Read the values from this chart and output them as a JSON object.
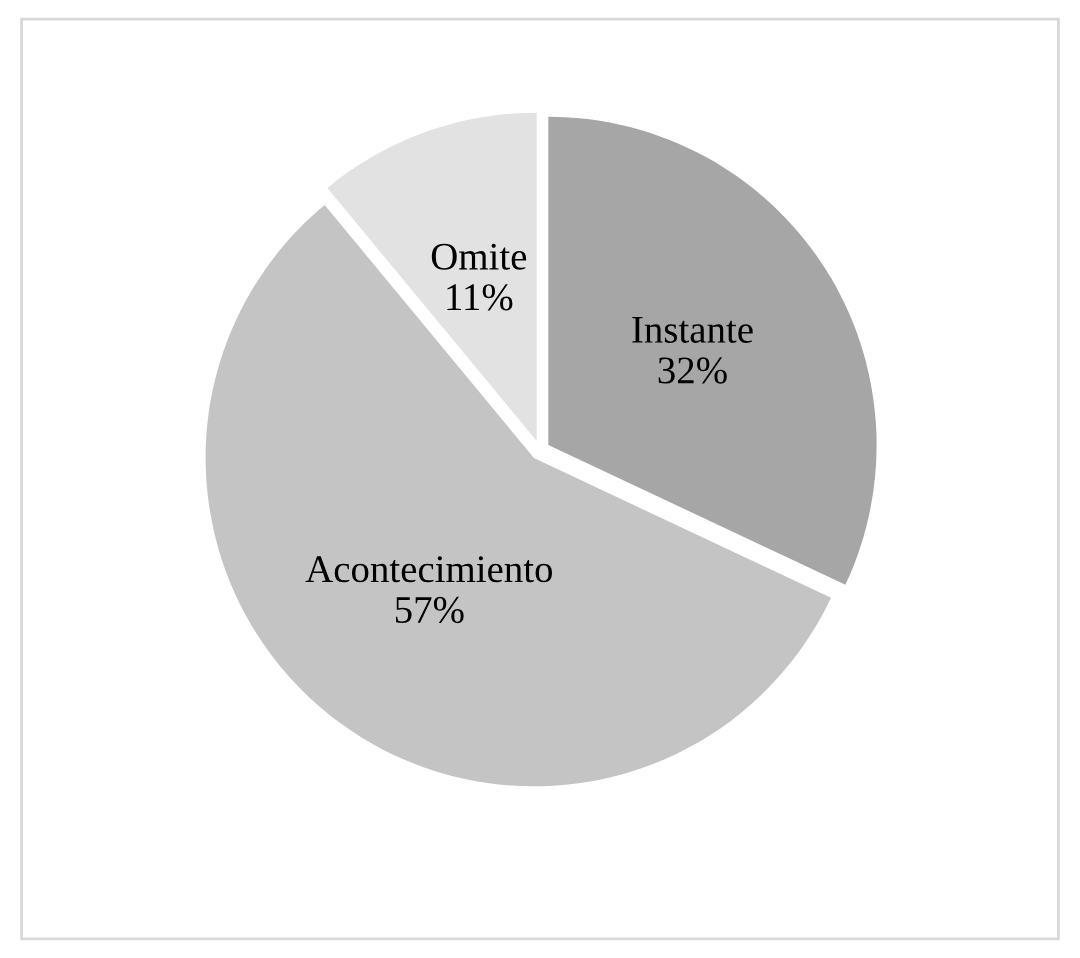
{
  "chart_data": {
    "type": "pie",
    "categories": [
      "Instante",
      "Acontecimiento",
      "Omite"
    ],
    "values": [
      32,
      57,
      11
    ],
    "value_labels": [
      "32%",
      "57%",
      "11%"
    ],
    "colors": [
      "#a6a6a6",
      "#c4c4c4",
      "#e2e2e2"
    ],
    "legend": false
  }
}
